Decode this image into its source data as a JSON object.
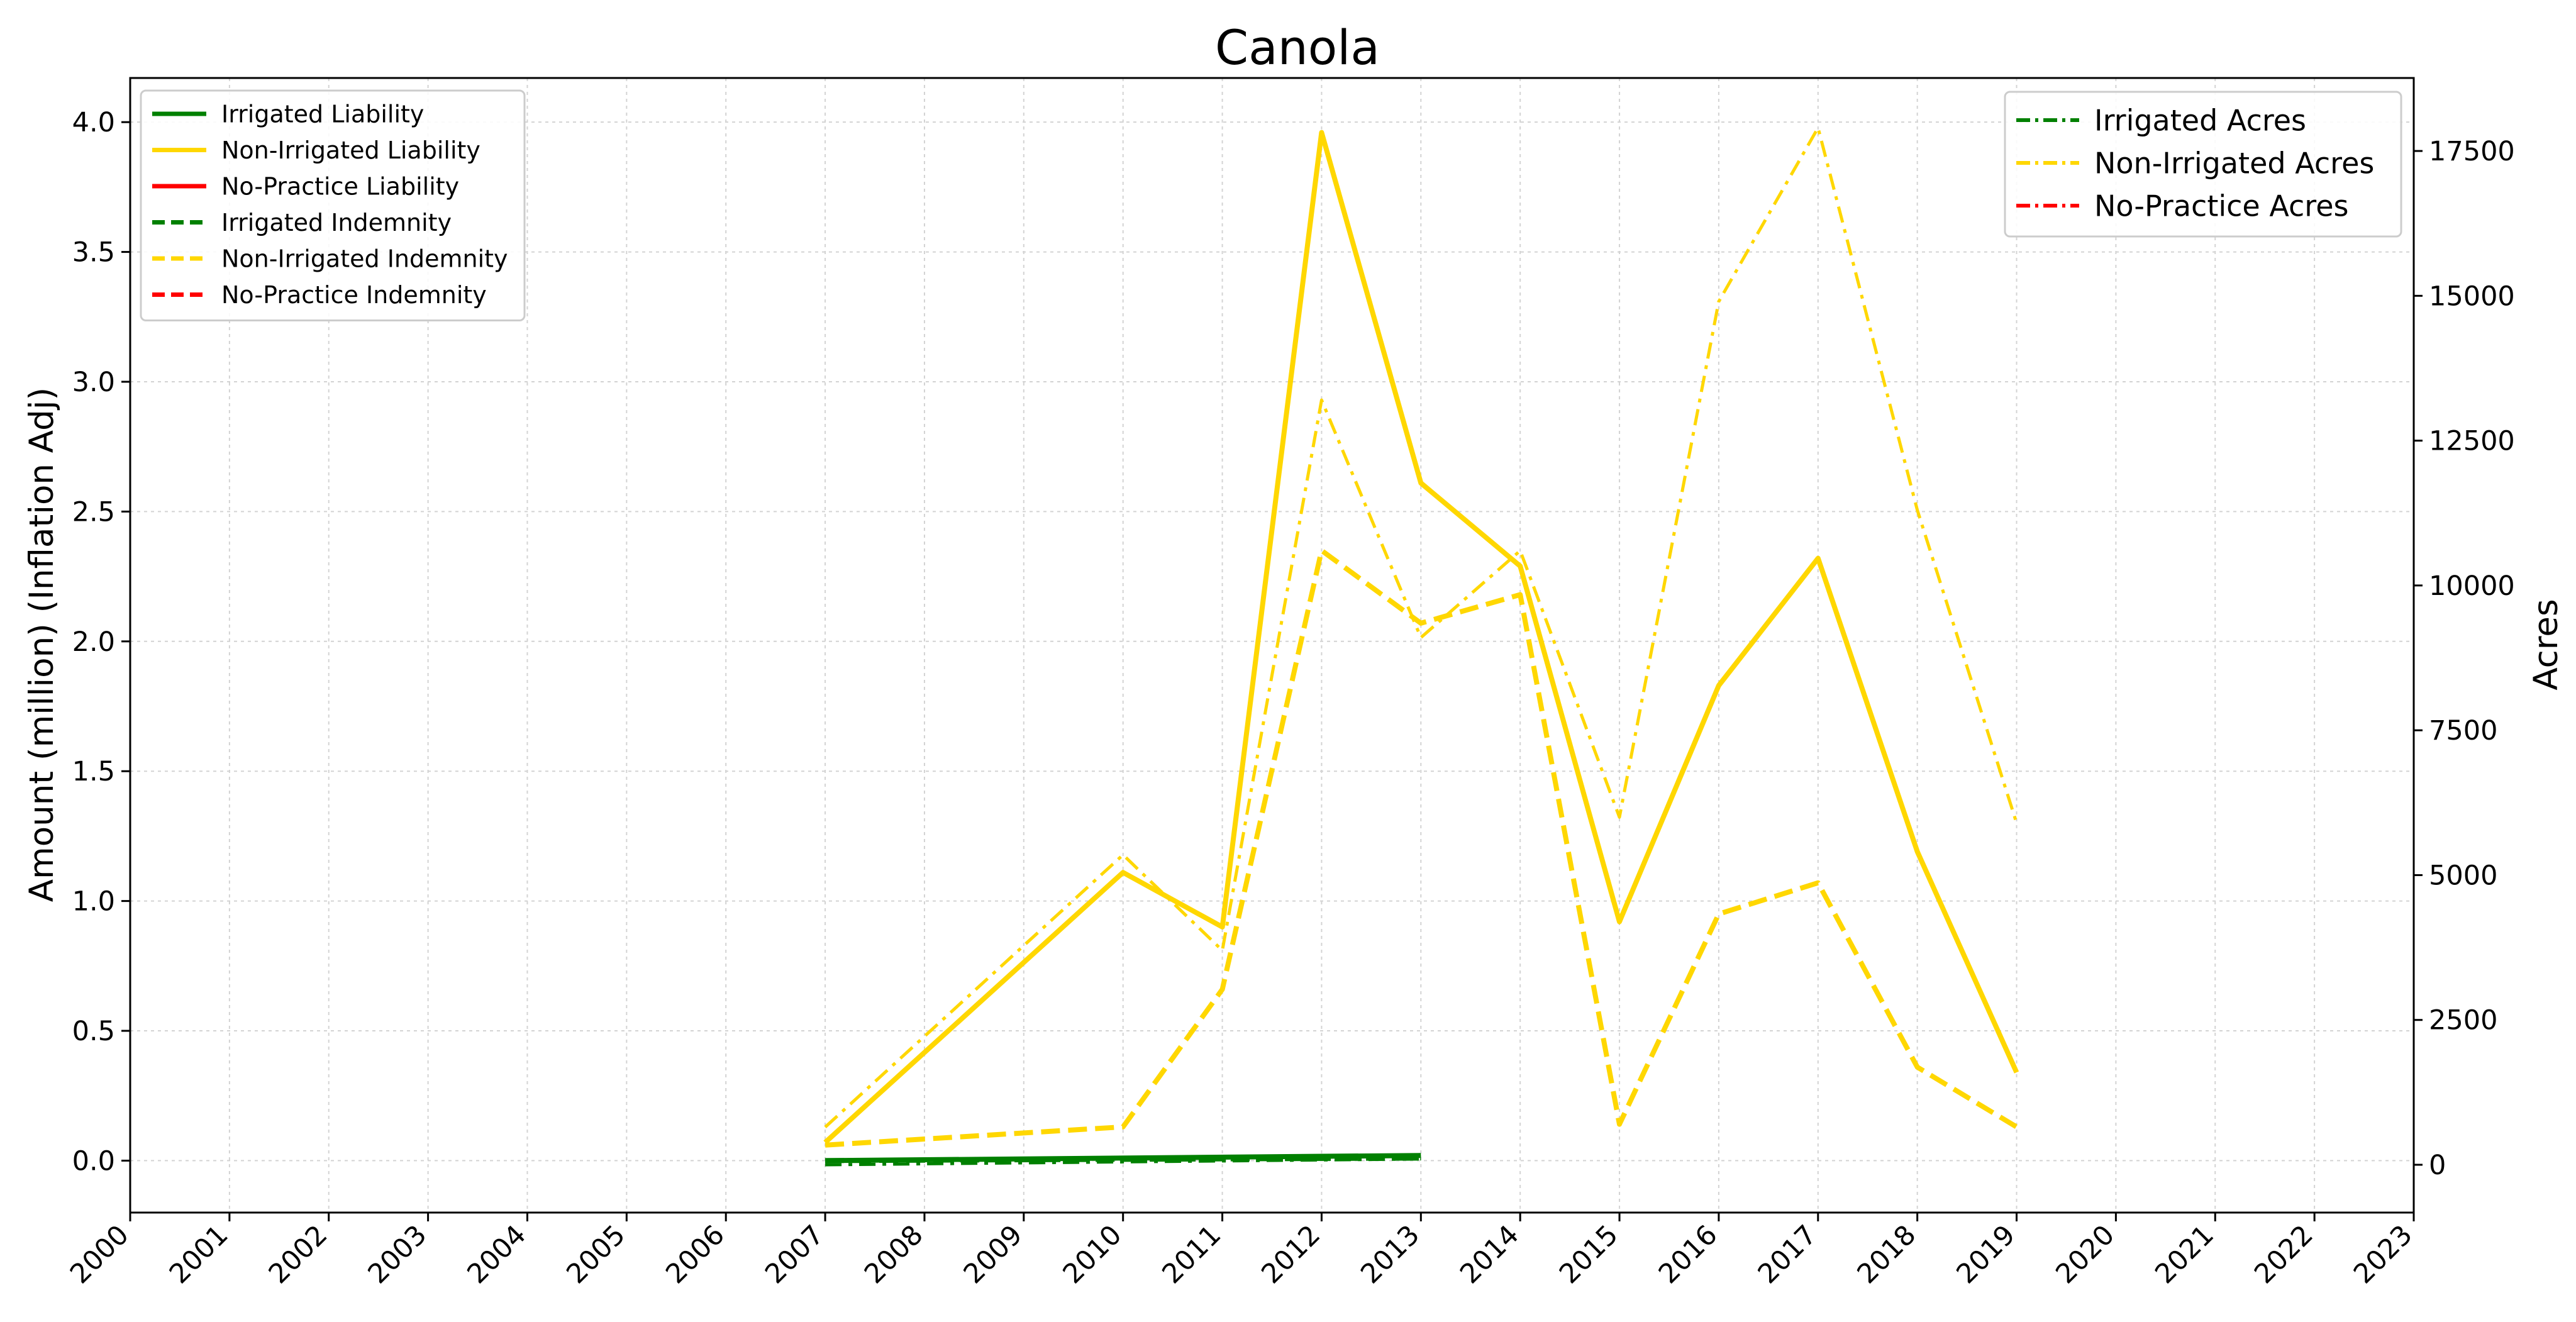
{
  "chart_data": {
    "type": "line",
    "title": "Canola",
    "ylabel": "Amount (million) (Inflation Adj)",
    "y2label": "Acres",
    "xlim": [
      2000,
      2023
    ],
    "ylim": [
      -0.2,
      4.17
    ],
    "y2lim": [
      -825,
      18760
    ],
    "x_ticks": [
      2000,
      2001,
      2002,
      2003,
      2004,
      2005,
      2006,
      2007,
      2008,
      2009,
      2010,
      2011,
      2012,
      2013,
      2014,
      2015,
      2016,
      2017,
      2018,
      2019,
      2020,
      2021,
      2022,
      2023
    ],
    "y_ticks": [
      0.0,
      0.5,
      1.0,
      1.5,
      2.0,
      2.5,
      3.0,
      3.5,
      4.0
    ],
    "y_tick_labels": [
      "0.0",
      "0.5",
      "1.0",
      "1.5",
      "2.0",
      "2.5",
      "3.0",
      "3.5",
      "4.0"
    ],
    "y2_ticks": [
      0,
      2500,
      5000,
      7500,
      10000,
      12500,
      15000,
      17500
    ],
    "y2_tick_labels": [
      "0",
      "2500",
      "5000",
      "7500",
      "10000",
      "12500",
      "15000",
      "17500"
    ],
    "grid": true,
    "colors": {
      "irrigated": "#008000",
      "non_irrigated": "#ffd700",
      "no_practice": "#ff0000"
    },
    "legend_left": {
      "placement": "upper-left",
      "entries": [
        {
          "label": "Irrigated Liability",
          "color": "#008000",
          "style": "solid"
        },
        {
          "label": "Non-Irrigated Liability",
          "color": "#ffd700",
          "style": "solid"
        },
        {
          "label": "No-Practice Liability",
          "color": "#ff0000",
          "style": "solid"
        },
        {
          "label": "Irrigated Indemnity",
          "color": "#008000",
          "style": "dashed"
        },
        {
          "label": "Non-Irrigated Indemnity",
          "color": "#ffd700",
          "style": "dashed"
        },
        {
          "label": "No-Practice Indemnity",
          "color": "#ff0000",
          "style": "dashed"
        }
      ]
    },
    "legend_right": {
      "placement": "upper-right",
      "entries": [
        {
          "label": "Irrigated Acres",
          "color": "#008000",
          "style": "dashdot"
        },
        {
          "label": "Non-Irrigated Acres",
          "color": "#ffd700",
          "style": "dashdot"
        },
        {
          "label": "No-Practice Acres",
          "color": "#ff0000",
          "style": "dashdot"
        }
      ]
    },
    "series": [
      {
        "name": "Irrigated Liability",
        "axis": "left",
        "color": "#008000",
        "style": "solid",
        "x": [
          2007,
          2013
        ],
        "values": [
          0.0,
          0.02
        ]
      },
      {
        "name": "Non-Irrigated Liability",
        "axis": "left",
        "color": "#ffd700",
        "style": "solid",
        "x": [
          2007,
          2010,
          2011,
          2012,
          2013,
          2014,
          2015,
          2016,
          2017,
          2018,
          2019
        ],
        "values": [
          0.07,
          1.11,
          0.9,
          3.96,
          2.61,
          2.29,
          0.92,
          1.83,
          2.32,
          1.19,
          0.34
        ]
      },
      {
        "name": "Irrigated Indemnity",
        "axis": "left",
        "color": "#008000",
        "style": "dashed",
        "x": [
          2007,
          2013
        ],
        "values": [
          0.0,
          0.01
        ]
      },
      {
        "name": "Non-Irrigated Indemnity",
        "axis": "left",
        "color": "#ffd700",
        "style": "dashed",
        "x": [
          2007,
          2010,
          2011,
          2012,
          2013,
          2014,
          2015,
          2016,
          2017,
          2018,
          2019
        ],
        "values": [
          0.06,
          0.13,
          0.66,
          2.35,
          2.07,
          2.18,
          0.14,
          0.95,
          1.07,
          0.36,
          0.13
        ]
      },
      {
        "name": "Irrigated Acres",
        "axis": "right",
        "color": "#008000",
        "style": "dashdot",
        "x": [
          2007,
          2013
        ],
        "values": [
          0,
          100
        ]
      },
      {
        "name": "Non-Irrigated Acres",
        "axis": "right",
        "color": "#ffd700",
        "style": "dashdot",
        "x": [
          2007,
          2010,
          2011,
          2012,
          2013,
          2014,
          2015,
          2016,
          2017,
          2018,
          2019
        ],
        "values": [
          650,
          5350,
          3700,
          13200,
          9100,
          10600,
          6000,
          14900,
          17900,
          11300,
          5900
        ]
      }
    ]
  }
}
